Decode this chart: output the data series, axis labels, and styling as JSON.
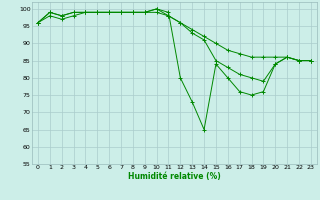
{
  "title": "",
  "xlabel": "Humidité relative (%)",
  "bg_color": "#cceee8",
  "grid_color": "#aacccc",
  "line_color": "#008800",
  "xlim": [
    -0.5,
    23.5
  ],
  "ylim": [
    55,
    102
  ],
  "yticks": [
    55,
    60,
    65,
    70,
    75,
    80,
    85,
    90,
    95,
    100
  ],
  "xticks": [
    0,
    1,
    2,
    3,
    4,
    5,
    6,
    7,
    8,
    9,
    10,
    11,
    12,
    13,
    14,
    15,
    16,
    17,
    18,
    19,
    20,
    21,
    22,
    23
  ],
  "series1": [
    96,
    98,
    97,
    98,
    99,
    99,
    99,
    99,
    99,
    99,
    100,
    99,
    80,
    73,
    65,
    84,
    80,
    76,
    75,
    76,
    84,
    86,
    85,
    85
  ],
  "series2": [
    96,
    99,
    98,
    99,
    99,
    99,
    99,
    99,
    99,
    99,
    99,
    98,
    96,
    94,
    92,
    90,
    88,
    87,
    86,
    86,
    86,
    86,
    85,
    85
  ],
  "series3": [
    96,
    99,
    98,
    99,
    99,
    99,
    99,
    99,
    99,
    99,
    100,
    98,
    96,
    93,
    91,
    85,
    83,
    81,
    80,
    79,
    84,
    86,
    85,
    85
  ]
}
